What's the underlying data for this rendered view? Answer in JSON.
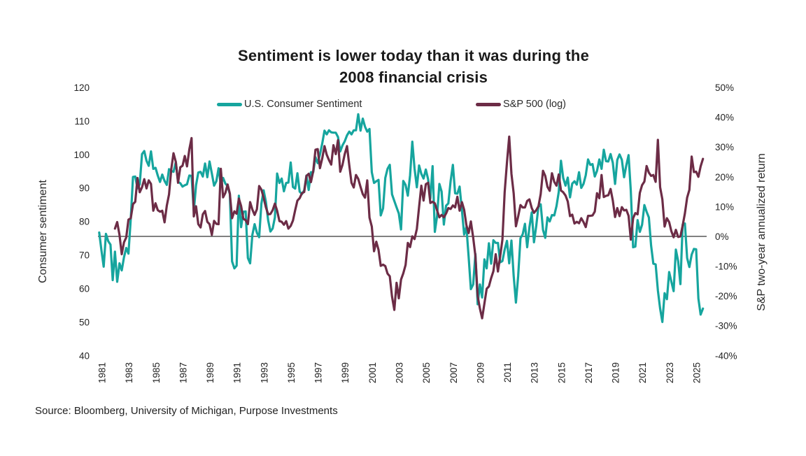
{
  "title": {
    "line1": "Sentiment is lower today than it was during the",
    "line2": "2008 financial crisis"
  },
  "source": "Source: Bloomberg, University of Michigan, Purpose Investments",
  "chart_data": {
    "type": "line",
    "title": "Sentiment is lower today than it was during the 2008 financial crisis",
    "grid": "off",
    "legend_position": "top",
    "left_axis": {
      "label": "Consumer sentiment",
      "range": [
        40,
        120
      ],
      "ticks": [
        "120",
        "110",
        "100",
        "90",
        "80",
        "70",
        "60",
        "50",
        "40"
      ]
    },
    "right_axis": {
      "label": "S&P two-year annualized return",
      "range": [
        -40,
        50
      ],
      "ticks": [
        "50%",
        "40%",
        "30%",
        "20%",
        "10%",
        "0%",
        "-10%",
        "-20%",
        "-30%",
        "-40%"
      ],
      "zero_line": 0
    },
    "x_axis": {
      "range": [
        1980.6,
        2025.7
      ],
      "ticks": [
        "1981",
        "1983",
        "1985",
        "1987",
        "1989",
        "1991",
        "1993",
        "1995",
        "1997",
        "1999",
        "2001",
        "2003",
        "2005",
        "2007",
        "2009",
        "2011",
        "2013",
        "2015",
        "2017",
        "2019",
        "2021",
        "2023",
        "2025"
      ]
    },
    "series": [
      {
        "name": "U.S. Consumer Sentiment",
        "color": "#16A59E",
        "axis": "left",
        "x_start": 1980.8333,
        "x_step": 0.16667,
        "values": [
          76.7,
          71.4,
          66.5,
          76.3,
          74.1,
          73.1,
          62.5,
          71,
          62,
          67.5,
          65.4,
          69.3,
          72.1,
          70.4,
          80.8,
          93.3,
          93.4,
          89.9,
          91.1,
          100.1,
          101,
          98.1,
          96.6,
          100.9,
          95.7,
          96,
          93.7,
          91.8,
          94,
          92.1,
          90.9,
          95.6,
          95.1,
          94.8,
          97.7,
          91.8,
          91.4,
          90.4,
          90.8,
          91.1,
          93.7,
          93.6,
          83.1,
          90.8,
          94.6,
          94.8,
          93.4,
          97.3,
          93.2,
          97.9,
          94.3,
          90.7,
          92,
          95.9,
          91,
          93,
          91.3,
          90.6,
          88.2,
          68.1,
          66,
          66.8,
          87.7,
          78.3,
          82.9,
          83,
          69.1,
          67.5,
          76,
          79.2,
          76.6,
          75.3,
          85.3,
          89.3,
          85.9,
          80.3,
          77,
          77.9,
          81.2,
          94.3,
          91.5,
          92.8,
          89,
          91.5,
          91.6,
          97.6,
          90.3,
          89.8,
          94.4,
          88.9,
          88.2,
          89.3,
          93.7,
          89.4,
          94.7,
          94.7,
          99.2,
          97.4,
          100,
          103.2,
          107.1,
          106,
          107.2,
          106.6,
          106.5,
          106.5,
          105.2,
          100.9,
          102.7,
          103.9,
          105.7,
          106.8,
          106,
          107.2,
          107.2,
          112,
          107.1,
          110.7,
          108.3,
          106.8,
          107.6,
          94.7,
          91.5,
          92,
          92.4,
          81.8,
          83.9,
          93,
          95.7,
          96.9,
          88.1,
          86.1,
          84.2,
          82.4,
          77.6,
          92.1,
          90.9,
          87.7,
          93.7,
          103.8,
          95.8,
          90.2,
          96.7,
          94.2,
          92.8,
          95.5,
          92.6,
          86.9,
          96.5,
          76.9,
          81.6,
          91.2,
          88.9,
          79.1,
          84.7,
          85.4,
          92.1,
          96.9,
          88.4,
          88.3,
          90.4,
          83.4,
          76.1,
          78.4,
          69.5,
          59.8,
          61.2,
          70.3,
          55.3,
          61.2,
          57.3,
          68.7,
          66,
          73.5,
          67.4,
          74.4,
          73.6,
          73.6,
          67.8,
          68.2,
          71.6,
          74.2,
          67.5,
          74.3,
          63.7,
          55.8,
          63.7,
          75,
          76.2,
          79.3,
          72.3,
          78.3,
          82.7,
          73.8,
          78.6,
          84.5,
          85.1,
          77.5,
          75.1,
          81.2,
          80,
          81.9,
          81.8,
          84.6,
          88.8,
          98.1,
          93,
          90.7,
          93.1,
          87.2,
          91.3,
          92,
          91,
          94.7,
          90,
          91.2,
          93.8,
          98.5,
          96.9,
          97.1,
          93.4,
          95.1,
          98.5,
          95.7,
          101.4,
          98,
          97.9,
          100.1,
          97.5,
          91.2,
          98.4,
          100,
          98.4,
          93.2,
          96.8,
          99.8,
          89.1,
          72.3,
          72.5,
          80.4,
          76.9,
          79,
          84.9,
          82.9,
          81.2,
          72.8,
          67.4,
          67.2,
          59.4,
          54,
          50,
          58.6,
          56.8,
          64.9,
          62,
          59.2,
          71.6,
          68.1,
          61.3,
          79,
          79.4,
          69.1,
          66.4,
          70.1,
          71.8,
          71.7,
          57,
          52.2,
          54
        ]
      },
      {
        "name": "S&P 500 (log)",
        "color": "#6C2C46",
        "axis": "right",
        "x_start": 1982.0,
        "x_step": 0.16667,
        "values": [
          2.6,
          4.8,
          0.5,
          -6,
          -2,
          -0.4,
          5.6,
          6.1,
          10.8,
          11.6,
          19.6,
          14.8,
          16.5,
          19.2,
          16.1,
          18.8,
          17.6,
          8.6,
          11.1,
          8.8,
          8.3,
          8.6,
          4.7,
          10.3,
          14.1,
          22.6,
          27.9,
          25,
          18,
          23.2,
          23.7,
          27,
          23.5,
          29.2,
          33,
          6.7,
          10.1,
          4.1,
          3,
          7.4,
          8.5,
          4.9,
          4.1,
          0.5,
          5.2,
          4.2,
          4.1,
          22.7,
          13.1,
          14.6,
          17.4,
          14.4,
          6.1,
          8.4,
          7.6,
          12.7,
          10.2,
          5.9,
          5.4,
          4.1,
          11.5,
          9,
          7.2,
          9.1,
          16.9,
          15.7,
          13,
          9.8,
          7.4,
          7.5,
          8.8,
          11,
          8.6,
          5.1,
          4.9,
          3.9,
          5.1,
          2.6,
          3.5,
          5.3,
          8.8,
          12,
          12.8,
          14.5,
          14.9,
          20.3,
          21,
          18.2,
          21.9,
          29.1,
          29.3,
          22.9,
          26.1,
          30.3,
          27.4,
          25.6,
          24.1,
          30.6,
          27.6,
          32.3,
          21.7,
          24,
          27.6,
          30.3,
          23.9,
          18,
          16.4,
          20.6,
          19.3,
          16.6,
          14.2,
          13,
          18.8,
          6.3,
          3.3,
          -5,
          -1.8,
          -4.5,
          -9.9,
          -9.5,
          -10,
          -12.5,
          -13.4,
          -20.2,
          -24.7,
          -15.6,
          -20.8,
          -14.5,
          -12.4,
          -9.6,
          -2.2,
          -3.6,
          0,
          -0.9,
          2.5,
          9.9,
          17,
          12,
          17.5,
          18,
          11.2,
          11.6,
          11.1,
          8.7,
          6.4,
          7.2,
          6.4,
          7.7,
          9.5,
          9.2,
          10.4,
          9.7,
          13.3,
          8.6,
          11.5,
          8.9,
          3.8,
          1.1,
          5,
          -0.4,
          -6.6,
          -20,
          -24.2,
          -27.5,
          -22.5,
          -17.6,
          -16.8,
          -14,
          -11.7,
          -6,
          -11.8,
          -6.7,
          -1.1,
          14.8,
          24.8,
          33.5,
          21,
          14.4,
          3.4,
          6.7,
          10.5,
          9.7,
          9.7,
          11.9,
          12.4,
          9.5,
          7.9,
          8.8,
          10.1,
          14.2,
          22,
          20.3,
          16.6,
          15.3,
          21.2,
          18.3,
          17,
          20.8,
          15.4,
          14.8,
          13.7,
          11.7,
          6.8,
          7.3,
          4.3,
          4.9,
          4.4,
          6.1,
          4.8,
          3.1,
          6.9,
          6.9,
          7,
          8.3,
          14.5,
          12.8,
          20.6,
          13.2,
          13.6,
          13.8,
          15.9,
          12,
          6.5,
          9.5,
          6.8,
          9.8,
          8.7,
          8.9,
          6.9,
          -1.1,
          6.1,
          7.8,
          7.4,
          14.6,
          17.2,
          18.4,
          23.6,
          21.4,
          20.3,
          20.6,
          18.3,
          32.4,
          16.5,
          12.4,
          3.3,
          6.1,
          4.8,
          1.7,
          -0.3,
          2.2,
          -0.2,
          0,
          3.6,
          7.7,
          13,
          15.6,
          26.8,
          21.6,
          21.7,
          20,
          23.5,
          26
        ]
      }
    ]
  }
}
